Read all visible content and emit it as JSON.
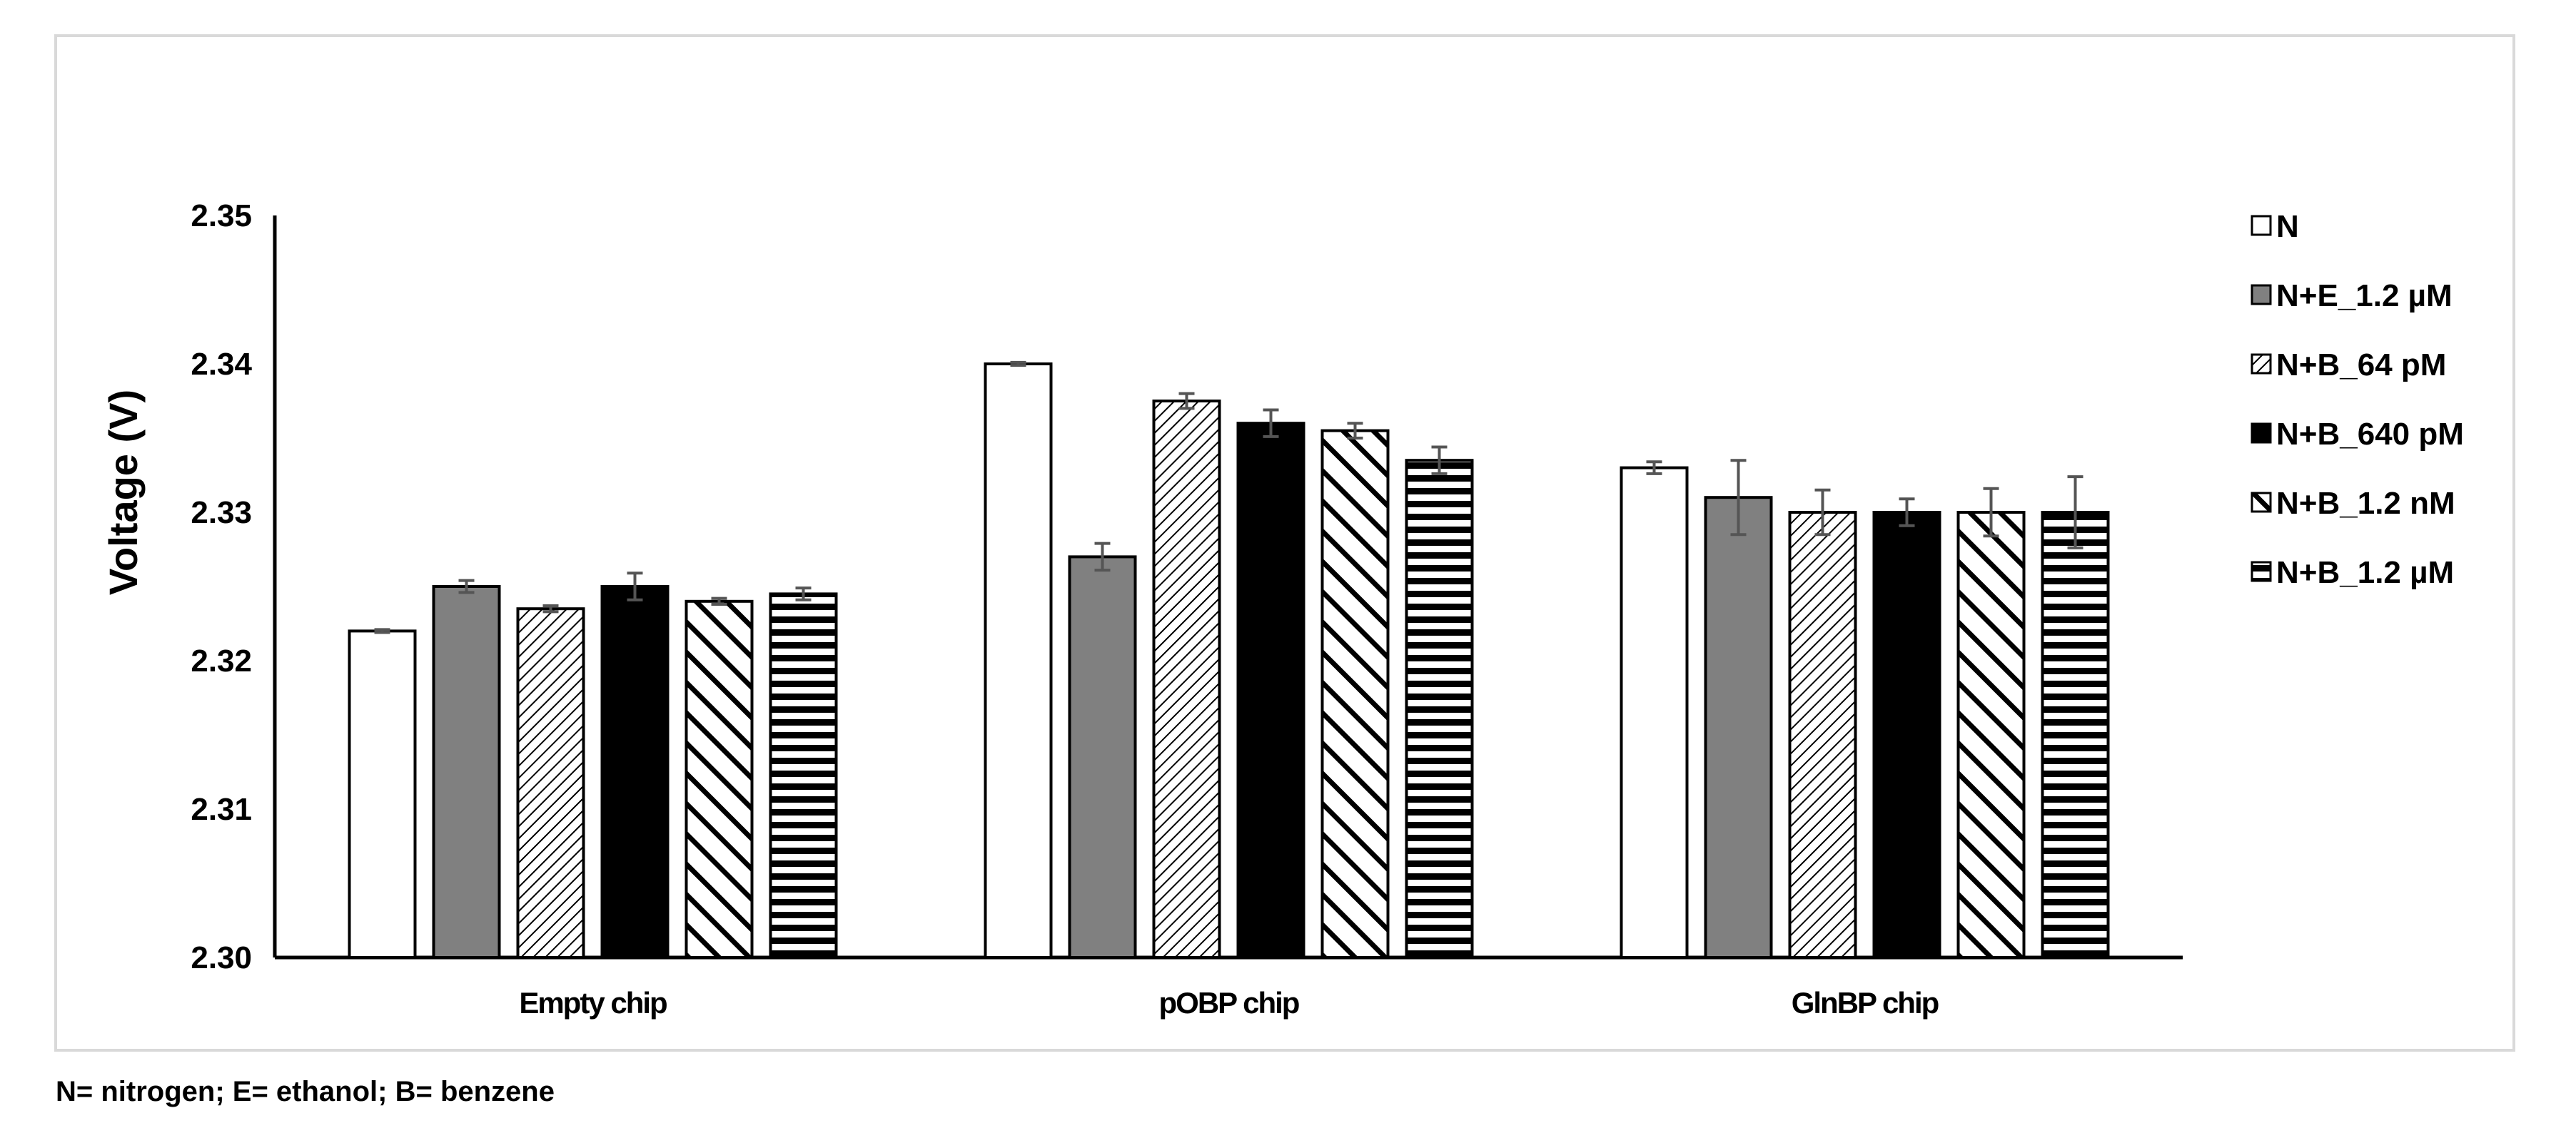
{
  "chart_data": {
    "type": "bar",
    "categories": [
      "Empty chip",
      "pOBP chip",
      "GlnBP chip"
    ],
    "ylabel": "Voltage (V)",
    "xlabel": "",
    "ylim": [
      2.3,
      2.35
    ],
    "yticks": [
      "2.30",
      "2.31",
      "2.32",
      "2.33",
      "2.34",
      "2.35"
    ],
    "grid": false,
    "legend_position": "right",
    "series": [
      {
        "name": "N",
        "pattern": "white",
        "values": [
          2.322,
          2.34,
          2.333
        ],
        "errors": [
          0.0001,
          0.0001,
          0.0004
        ]
      },
      {
        "name": "N+E_1.2 µM",
        "pattern": "gray",
        "values": [
          2.325,
          2.327,
          2.331
        ],
        "errors": [
          0.0004,
          0.0009,
          0.0025
        ]
      },
      {
        "name": "N+B_64 pM",
        "pattern": "fine-diagonal",
        "values": [
          2.3235,
          2.3375,
          2.33
        ],
        "errors": [
          0.0002,
          0.0005,
          0.0015
        ]
      },
      {
        "name": "N+B_640 pM",
        "pattern": "black",
        "values": [
          2.325,
          2.336,
          2.33
        ],
        "errors": [
          0.0009,
          0.0009,
          0.0009
        ]
      },
      {
        "name": "N+B_1.2 nM",
        "pattern": "wide-diagonal",
        "values": [
          2.324,
          2.3355,
          2.33
        ],
        "errors": [
          0.0002,
          0.0005,
          0.0016
        ]
      },
      {
        "name": "N+B_1.2 µM",
        "pattern": "horizontal",
        "values": [
          2.3245,
          2.3335,
          2.33
        ],
        "errors": [
          0.0004,
          0.0009,
          0.0024
        ]
      }
    ],
    "colors": {
      "gray": "#808080",
      "black": "#000000",
      "white": "#ffffff",
      "border": "#d9d9d9"
    }
  },
  "footnote": "N= nitrogen; E= ethanol; B= benzene"
}
